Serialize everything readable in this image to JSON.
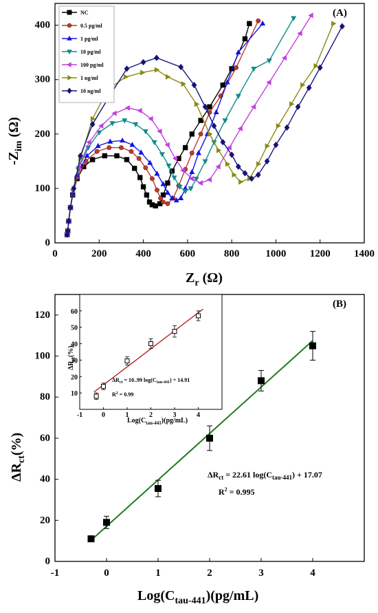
{
  "figure": {
    "panel_a_label": "(A)",
    "panel_b_label": "(B)",
    "a_xlabel": "Z",
    "a_xlabel_sub": "r",
    "a_xlabel_unit": " (Ω)",
    "a_ylabel": "-Z",
    "a_ylabel_sub": "im",
    "a_ylabel_unit": " (Ω)",
    "b_xlabel": "Log(C",
    "b_xlabel_sub": "tau-441",
    "b_xlabel_unit": ")(pg/mL)",
    "b_ylabel": "ΔR",
    "b_ylabel_sub": "ct",
    "b_ylabel_unit": "(%)",
    "b_eq_lhs": "ΔR",
    "b_eq_lhs_sub": "ct",
    "b_eq_mid": " = 22.61 log(C",
    "b_eq_sub": "tau-441",
    "b_eq_rhs": ") + 17.07",
    "b_r2": "R",
    "b_r2_sup": "2",
    "b_r2_val": " = 0.995",
    "inset_ylabel": "ΔR",
    "inset_ylabel_sub": "ct",
    "inset_ylabel_unit": "(%)",
    "inset_xlabel": "Log(C",
    "inset_xlabel_sub": "tau-441",
    "inset_xlabel_unit": ")(pg/mL)",
    "inset_eq_lhs": "ΔR",
    "inset_eq_lhs_sub": "ct",
    "inset_eq_mid": " = 10..99 log(C",
    "inset_eq_sub": "tau-441",
    "inset_eq_rhs": ") + 14.91",
    "inset_r2": "R",
    "inset_r2_sup": "2",
    "inset_r2_val": " = 0.99"
  },
  "chart_data": [
    {
      "type": "scatter",
      "panel": "(A)",
      "xlabel": "Zr (Ω)",
      "ylabel": "-Zim (Ω)",
      "xlim": [
        0,
        1400
      ],
      "ylim": [
        0,
        440
      ],
      "xticks": [
        0,
        200,
        400,
        600,
        800,
        1000,
        1200,
        1400
      ],
      "yticks": [
        0,
        100,
        200,
        300,
        400
      ],
      "legend_position": "top-left",
      "series": [
        {
          "name": "NC",
          "color": "#000000",
          "marker": "square",
          "points": [
            [
              55,
              15
            ],
            [
              58,
              22
            ],
            [
              62,
              40
            ],
            [
              70,
              65
            ],
            [
              80,
              88
            ],
            [
              100,
              118
            ],
            [
              130,
              140
            ],
            [
              170,
              153
            ],
            [
              225,
              160
            ],
            [
              280,
              160
            ],
            [
              325,
              153
            ],
            [
              360,
              137
            ],
            [
              385,
              120
            ],
            [
              400,
              103
            ],
            [
              415,
              88
            ],
            [
              428,
              75
            ],
            [
              440,
              70
            ],
            [
              455,
              68
            ],
            [
              475,
              72
            ],
            [
              490,
              88
            ],
            [
              510,
              110
            ],
            [
              530,
              132
            ],
            [
              560,
              155
            ],
            [
              590,
              175
            ],
            [
              620,
              200
            ],
            [
              660,
              225
            ],
            [
              700,
              250
            ],
            [
              760,
              290
            ],
            [
              800,
              320
            ],
            [
              860,
              375
            ],
            [
              880,
              403
            ]
          ]
        },
        {
          "name": "0.5 pg/ml",
          "color": "#c0392b",
          "marker": "circle",
          "points": [
            [
              55,
              15
            ],
            [
              58,
              22
            ],
            [
              62,
              40
            ],
            [
              70,
              65
            ],
            [
              80,
              88
            ],
            [
              100,
              120
            ],
            [
              140,
              150
            ],
            [
              190,
              168
            ],
            [
              245,
              175
            ],
            [
              300,
              175
            ],
            [
              345,
              168
            ],
            [
              380,
              155
            ],
            [
              410,
              138
            ],
            [
              440,
              118
            ],
            [
              462,
              97
            ],
            [
              478,
              82
            ],
            [
              490,
              75
            ],
            [
              510,
              72
            ],
            [
              535,
              82
            ],
            [
              560,
              105
            ],
            [
              590,
              135
            ],
            [
              620,
              165
            ],
            [
              660,
              200
            ],
            [
              700,
              240
            ],
            [
              750,
              270
            ],
            [
              820,
              322
            ],
            [
              920,
              408
            ]
          ]
        },
        {
          "name": "1 pg/ml",
          "color": "#1414e0",
          "marker": "triangle-up",
          "points": [
            [
              55,
              15
            ],
            [
              58,
              22
            ],
            [
              62,
              40
            ],
            [
              70,
              65
            ],
            [
              80,
              90
            ],
            [
              100,
              125
            ],
            [
              145,
              160
            ],
            [
              195,
              178
            ],
            [
              250,
              186
            ],
            [
              305,
              188
            ],
            [
              350,
              180
            ],
            [
              390,
              166
            ],
            [
              430,
              147
            ],
            [
              462,
              127
            ],
            [
              490,
              108
            ],
            [
              510,
              92
            ],
            [
              530,
              82
            ],
            [
              550,
              78
            ],
            [
              570,
              82
            ],
            [
              590,
              100
            ],
            [
              620,
              130
            ],
            [
              650,
              165
            ],
            [
              690,
              200
            ],
            [
              730,
              240
            ],
            [
              780,
              295
            ],
            [
              830,
              350
            ],
            [
              940,
              403
            ]
          ]
        },
        {
          "name": "10 pg/ml",
          "color": "#138a8a",
          "marker": "triangle-down",
          "points": [
            [
              55,
              15
            ],
            [
              58,
              22
            ],
            [
              62,
              40
            ],
            [
              70,
              65
            ],
            [
              82,
              95
            ],
            [
              105,
              135
            ],
            [
              150,
              175
            ],
            [
              200,
              203
            ],
            [
              260,
              220
            ],
            [
              315,
              225
            ],
            [
              365,
              218
            ],
            [
              410,
              205
            ],
            [
              450,
              185
            ],
            [
              485,
              163
            ],
            [
              515,
              142
            ],
            [
              540,
              120
            ],
            [
              565,
              103
            ],
            [
              590,
              95
            ],
            [
              615,
              100
            ],
            [
              640,
              118
            ],
            [
              680,
              150
            ],
            [
              720,
              185
            ],
            [
              770,
              225
            ],
            [
              830,
              270
            ],
            [
              900,
              320
            ],
            [
              970,
              335
            ],
            [
              1080,
              413
            ]
          ]
        },
        {
          "name": "100 pg/ml",
          "color": "#c040e0",
          "marker": "triangle-left",
          "points": [
            [
              55,
              15
            ],
            [
              58,
              22
            ],
            [
              62,
              40
            ],
            [
              70,
              65
            ],
            [
              82,
              98
            ],
            [
              108,
              140
            ],
            [
              155,
              185
            ],
            [
              210,
              215
            ],
            [
              270,
              238
            ],
            [
              330,
              248
            ],
            [
              385,
              243
            ],
            [
              435,
              228
            ],
            [
              475,
              205
            ],
            [
              510,
              180
            ],
            [
              545,
              155
            ],
            [
              580,
              133
            ],
            [
              620,
              118
            ],
            [
              660,
              110
            ],
            [
              700,
              116
            ],
            [
              740,
              140
            ],
            [
              790,
              175
            ],
            [
              840,
              210
            ],
            [
              900,
              250
            ],
            [
              970,
              295
            ],
            [
              1040,
              340
            ],
            [
              1110,
              385
            ],
            [
              1160,
              418
            ]
          ]
        },
        {
          "name": "1 ng/ml",
          "color": "#8a8a14",
          "marker": "triangle-right",
          "points": [
            [
              55,
              15
            ],
            [
              58,
              22
            ],
            [
              62,
              40
            ],
            [
              70,
              65
            ],
            [
              85,
              100
            ],
            [
              115,
              155
            ],
            [
              170,
              228
            ],
            [
              240,
              282
            ],
            [
              320,
              305
            ],
            [
              395,
              313
            ],
            [
              460,
              318
            ],
            [
              510,
              305
            ],
            [
              580,
              292
            ],
            [
              640,
              255
            ],
            [
              700,
              200
            ],
            [
              740,
              170
            ],
            [
              780,
              145
            ],
            [
              810,
              125
            ],
            [
              840,
              112
            ],
            [
              880,
              118
            ],
            [
              920,
              145
            ],
            [
              960,
              178
            ],
            [
              1010,
              215
            ],
            [
              1070,
              255
            ],
            [
              1120,
              290
            ],
            [
              1180,
              325
            ],
            [
              1260,
              403
            ]
          ]
        },
        {
          "name": "10 ng/ml",
          "color": "#141478",
          "marker": "diamond",
          "points": [
            [
              55,
              15
            ],
            [
              58,
              22
            ],
            [
              62,
              40
            ],
            [
              70,
              65
            ],
            [
              85,
              100
            ],
            [
              115,
              160
            ],
            [
              170,
              218
            ],
            [
              240,
              265
            ],
            [
              325,
              320
            ],
            [
              400,
              332
            ],
            [
              460,
              340
            ],
            [
              570,
              323
            ],
            [
              630,
              290
            ],
            [
              680,
              250
            ],
            [
              720,
              215
            ],
            [
              760,
              185
            ],
            [
              800,
              162
            ],
            [
              830,
              140
            ],
            [
              860,
              128
            ],
            [
              890,
              118
            ],
            [
              920,
              125
            ],
            [
              960,
              150
            ],
            [
              1000,
              180
            ],
            [
              1050,
              212
            ],
            [
              1100,
              250
            ],
            [
              1150,
              285
            ],
            [
              1200,
              322
            ],
            [
              1300,
              398
            ]
          ]
        }
      ]
    },
    {
      "type": "scatter",
      "panel": "(B)",
      "xlabel": "Log(Ctau-441)(pg/mL)",
      "ylabel": "ΔRct(%)",
      "xlim": [
        -1,
        5
      ],
      "ylim": [
        0,
        130
      ],
      "xticks": [
        -1,
        0,
        1,
        2,
        3,
        4
      ],
      "yticks": [
        0,
        20,
        40,
        60,
        80,
        100,
        120
      ],
      "points": [
        {
          "x": -0.3,
          "y": 11,
          "err": 1
        },
        {
          "x": 0,
          "y": 19,
          "err": 3
        },
        {
          "x": 1,
          "y": 35.5,
          "err": 4
        },
        {
          "x": 2,
          "y": 60,
          "err": 6
        },
        {
          "x": 3,
          "y": 88,
          "err": 5
        },
        {
          "x": 4,
          "y": 105,
          "err": 7
        }
      ],
      "fit": {
        "slope": 22.61,
        "intercept": 17.07,
        "x_range": [
          -0.3,
          4
        ],
        "color": "#1a7a1a"
      }
    },
    {
      "type": "scatter",
      "panel": "inset",
      "xlabel": "Log(Ctau-441)(pg/mL)",
      "ylabel": "ΔRct(%)",
      "xlim": [
        -1,
        5
      ],
      "ylim": [
        0,
        70
      ],
      "xticks": [
        -1,
        0,
        1,
        2,
        3,
        4
      ],
      "yticks": [
        10,
        20,
        30,
        40,
        50,
        60
      ],
      "points": [
        {
          "x": -0.3,
          "y": 8,
          "err": 2
        },
        {
          "x": 0,
          "y": 14,
          "err": 2
        },
        {
          "x": 1,
          "y": 29.5,
          "err": 2.5
        },
        {
          "x": 2,
          "y": 40,
          "err": 3
        },
        {
          "x": 3,
          "y": 47.5,
          "err": 3.5
        },
        {
          "x": 4,
          "y": 57,
          "err": 3
        }
      ],
      "fit": {
        "slope": 10.99,
        "intercept": 14.91,
        "x_range": [
          -0.4,
          4.2
        ],
        "color": "#b22222"
      }
    }
  ]
}
